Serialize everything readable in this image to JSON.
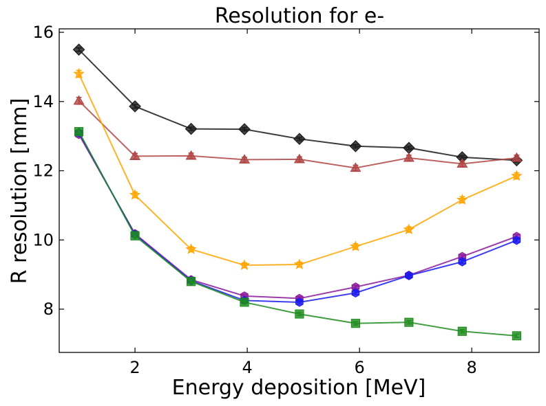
{
  "chart_data": {
    "type": "line",
    "title": "Resolution for e-",
    "xlabel": "Energy deposition [MeV]",
    "ylabel": "R resolution [mm]",
    "xlim": [
      0.65,
      9.2
    ],
    "ylim": [
      6.75,
      16.1
    ],
    "xticks": [
      2,
      4,
      6,
      8
    ],
    "yticks": [
      8,
      10,
      12,
      14,
      16
    ],
    "grid": false,
    "legend": "none",
    "series": [
      {
        "color": "#1a1a1a",
        "marker": "diamond",
        "x": [
          1.0,
          2.0,
          3.0,
          3.95,
          4.93,
          5.93,
          6.88,
          7.83,
          8.8
        ],
        "y": [
          15.5,
          13.86,
          13.21,
          13.2,
          12.92,
          12.71,
          12.66,
          12.39,
          12.3
        ],
        "err": [
          0.05,
          0.05,
          0.05,
          0.05,
          0.05,
          0.05,
          0.05,
          0.05,
          0.05
        ]
      },
      {
        "color": "#b04545",
        "marker": "triangle",
        "x": [
          1.0,
          2.0,
          3.0,
          3.95,
          4.93,
          5.93,
          6.88,
          7.83,
          8.8
        ],
        "y": [
          14.02,
          12.42,
          12.43,
          12.32,
          12.33,
          12.08,
          12.37,
          12.2,
          12.37
        ],
        "err": [
          0.1,
          0.08,
          0.08,
          0.07,
          0.07,
          0.08,
          0.08,
          0.08,
          0.08
        ]
      },
      {
        "color": "#ffa500",
        "marker": "star",
        "x": [
          1.0,
          2.0,
          3.0,
          3.95,
          4.93,
          5.93,
          6.88,
          7.83,
          8.8
        ],
        "y": [
          14.8,
          11.3,
          9.73,
          9.27,
          9.29,
          9.81,
          10.3,
          11.16,
          11.85
        ],
        "err": [
          0.1,
          0.08,
          0.07,
          0.07,
          0.07,
          0.08,
          0.08,
          0.09,
          0.09
        ]
      },
      {
        "color": "#8b1a9b",
        "marker": "hexagon",
        "x": [
          1.0,
          2.0,
          3.0,
          3.95,
          4.93,
          5.93,
          6.88,
          7.83,
          8.8
        ],
        "y": [
          13.05,
          10.18,
          8.85,
          8.38,
          8.31,
          8.64,
          8.98,
          9.52,
          10.1
        ],
        "err": [
          0.05,
          0.05,
          0.05,
          0.05,
          0.05,
          0.05,
          0.05,
          0.05,
          0.05
        ]
      },
      {
        "color": "#1a1aee",
        "marker": "hexagon",
        "x": [
          1.0,
          2.0,
          3.0,
          3.95,
          4.93,
          5.93,
          6.88,
          7.83,
          8.8
        ],
        "y": [
          13.1,
          10.15,
          8.82,
          8.25,
          8.2,
          8.47,
          8.97,
          9.37,
          9.99
        ],
        "err": [
          0.05,
          0.05,
          0.05,
          0.05,
          0.05,
          0.05,
          0.05,
          0.05,
          0.05
        ]
      },
      {
        "color": "#1e8c1e",
        "marker": "square",
        "x": [
          1.0,
          2.0,
          3.0,
          3.95,
          4.93,
          5.93,
          6.88,
          7.83,
          8.8
        ],
        "y": [
          13.13,
          10.12,
          8.8,
          8.2,
          7.86,
          7.59,
          7.62,
          7.36,
          7.23
        ],
        "err": [
          0.05,
          0.05,
          0.05,
          0.05,
          0.05,
          0.05,
          0.05,
          0.05,
          0.05
        ]
      }
    ]
  }
}
